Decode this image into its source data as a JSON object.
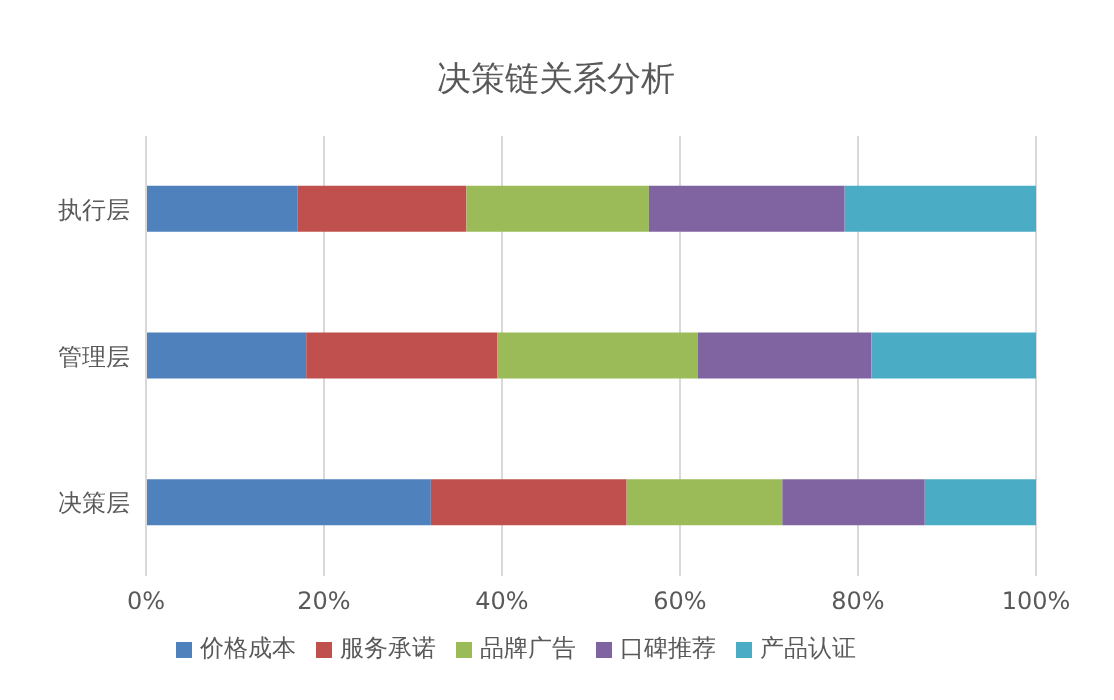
{
  "chart_data": {
    "type": "bar",
    "orientation": "horizontal",
    "stacked": true,
    "title": "决策链关系分析",
    "categories": [
      "执行层",
      "管理层",
      "决策层"
    ],
    "series": [
      {
        "name": "价格成本",
        "color": "#4f81bd",
        "values": [
          17,
          18,
          32
        ]
      },
      {
        "name": "服务承诺",
        "color": "#c0504d",
        "values": [
          19,
          21.5,
          22
        ]
      },
      {
        "name": "品牌广告",
        "color": "#9bbb59",
        "values": [
          20.5,
          22.5,
          17.5
        ]
      },
      {
        "name": "口碑推荐",
        "color": "#8064a2",
        "values": [
          22,
          19.5,
          16
        ]
      },
      {
        "name": "产品认证",
        "color": "#4bacc6",
        "values": [
          21.5,
          18.5,
          12.5
        ]
      }
    ],
    "xlim": [
      0,
      100
    ],
    "xticks": [
      {
        "value": 0,
        "label": "0%"
      },
      {
        "value": 20,
        "label": "20%"
      },
      {
        "value": 40,
        "label": "40%"
      },
      {
        "value": 60,
        "label": "60%"
      },
      {
        "value": 80,
        "label": "80%"
      },
      {
        "value": 100,
        "label": "100%"
      }
    ],
    "grid": "x",
    "legend": "bottom"
  }
}
